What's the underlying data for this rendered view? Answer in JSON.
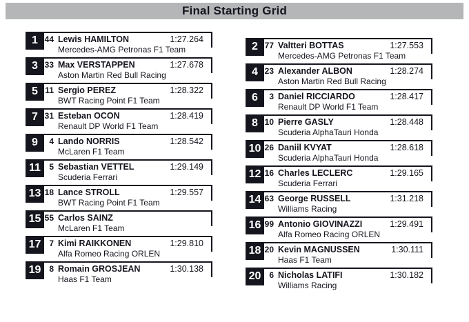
{
  "header": {
    "title": "Final Starting Grid"
  },
  "colors": {
    "header_bg": "#b5b6b8",
    "ink": "#15151e",
    "row_line": "#15151e",
    "pos_box_bg": "#15151e",
    "pos_box_text": "#ffffff"
  },
  "chart_data": {
    "type": "table",
    "title": "Final Starting Grid",
    "columns": [
      "position",
      "car_number",
      "driver",
      "team",
      "time"
    ],
    "layout": "two-column staggered grid, odd positions left, even positions right",
    "rows": [
      {
        "position": 1,
        "car_number": 44,
        "driver": "Lewis HAMILTON",
        "team": "Mercedes-AMG Petronas F1 Team",
        "time": "1:27.264"
      },
      {
        "position": 2,
        "car_number": 77,
        "driver": "Valtteri BOTTAS",
        "team": "Mercedes-AMG Petronas F1 Team",
        "time": "1:27.553"
      },
      {
        "position": 3,
        "car_number": 33,
        "driver": "Max VERSTAPPEN",
        "team": "Aston Martin Red Bull Racing",
        "time": "1:27.678"
      },
      {
        "position": 4,
        "car_number": 23,
        "driver": "Alexander ALBON",
        "team": "Aston Martin Red Bull Racing",
        "time": "1:28.274"
      },
      {
        "position": 5,
        "car_number": 11,
        "driver": "Sergio PEREZ",
        "team": "BWT Racing Point F1 Team",
        "time": "1:28.322"
      },
      {
        "position": 6,
        "car_number": 3,
        "driver": "Daniel RICCIARDO",
        "team": "Renault DP World F1 Team",
        "time": "1:28.417"
      },
      {
        "position": 7,
        "car_number": 31,
        "driver": "Esteban OCON",
        "team": "Renault DP World F1 Team",
        "time": "1:28.419"
      },
      {
        "position": 8,
        "car_number": 10,
        "driver": "Pierre GASLY",
        "team": "Scuderia AlphaTauri Honda",
        "time": "1:28.448"
      },
      {
        "position": 9,
        "car_number": 4,
        "driver": "Lando NORRIS",
        "team": "McLaren F1 Team",
        "time": "1:28.542"
      },
      {
        "position": 10,
        "car_number": 26,
        "driver": "Daniil KVYAT",
        "team": "Scuderia AlphaTauri Honda",
        "time": "1:28.618"
      },
      {
        "position": 11,
        "car_number": 5,
        "driver": "Sebastian VETTEL",
        "team": "Scuderia Ferrari",
        "time": "1:29.149"
      },
      {
        "position": 12,
        "car_number": 16,
        "driver": "Charles LECLERC",
        "team": "Scuderia Ferrari",
        "time": "1:29.165"
      },
      {
        "position": 13,
        "car_number": 18,
        "driver": "Lance STROLL",
        "team": "BWT Racing Point F1 Team",
        "time": "1:29.557"
      },
      {
        "position": 14,
        "car_number": 63,
        "driver": "George RUSSELL",
        "team": "Williams Racing",
        "time": "1:31.218"
      },
      {
        "position": 15,
        "car_number": 55,
        "driver": "Carlos SAINZ",
        "team": "McLaren F1 Team",
        "time": ""
      },
      {
        "position": 16,
        "car_number": 99,
        "driver": "Antonio GIOVINAZZI",
        "team": "Alfa Romeo Racing ORLEN",
        "time": "1:29.491"
      },
      {
        "position": 17,
        "car_number": 7,
        "driver": "Kimi RAIKKONEN",
        "team": "Alfa Romeo Racing ORLEN",
        "time": "1:29.810"
      },
      {
        "position": 18,
        "car_number": 20,
        "driver": "Kevin MAGNUSSEN",
        "team": "Haas F1 Team",
        "time": "1:30.111"
      },
      {
        "position": 19,
        "car_number": 8,
        "driver": "Romain GROSJEAN",
        "team": "Haas F1 Team",
        "time": "1:30.138"
      },
      {
        "position": 20,
        "car_number": 6,
        "driver": "Nicholas LATIFI",
        "team": "Williams Racing",
        "time": "1:30.182"
      }
    ]
  }
}
